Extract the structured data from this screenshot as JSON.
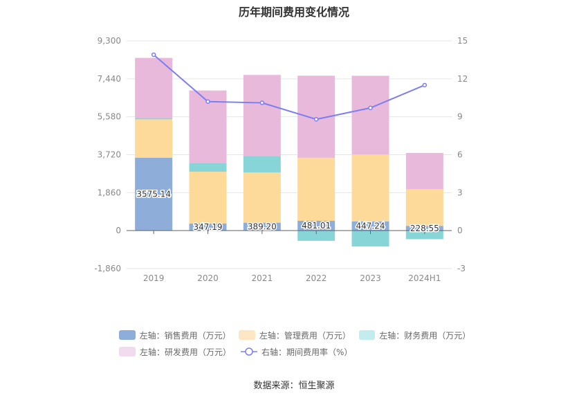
{
  "chart_data": {
    "type": "bar",
    "title": "历年期间费用变化情况",
    "categories": [
      "2019",
      "2020",
      "2021",
      "2022",
      "2023",
      "2024H1"
    ],
    "left_axis": {
      "min": -1860,
      "max": 9300,
      "ticks": [
        -1860,
        0,
        1860,
        3720,
        5580,
        7440,
        9300
      ],
      "tick_labels": [
        "-1,860",
        "0",
        "1,860",
        "3,720",
        "5,580",
        "7,440",
        "9,300"
      ]
    },
    "right_axis": {
      "min": -3,
      "max": 15,
      "ticks": [
        -3,
        0,
        3,
        6,
        9,
        12,
        15
      ],
      "tick_labels": [
        "-3",
        "0",
        "3",
        "6",
        "9",
        "12",
        "15"
      ]
    },
    "series": [
      {
        "name": "左轴：销售费用（万元）",
        "axis": "left",
        "kind": "bar",
        "color": "#8eadd9",
        "values": [
          3575.14,
          347.19,
          389.2,
          481.01,
          447.24,
          228.55
        ],
        "labels": [
          "3575.14",
          "347.19",
          "389.20",
          "481.01",
          "447.24",
          "228.55"
        ]
      },
      {
        "name": "左轴：管理费用（万元）",
        "axis": "left",
        "kind": "bar",
        "color": "#fdd99a",
        "values": [
          1880,
          2540,
          2460,
          3080,
          3280,
          1800
        ]
      },
      {
        "name": "左轴：财务费用（万元）",
        "axis": "left",
        "kind": "bar",
        "color": "#88d5d8",
        "values": [
          60,
          430,
          810,
          -500,
          -780,
          -420
        ]
      },
      {
        "name": "左轴：研发费用（万元）",
        "axis": "left",
        "kind": "bar",
        "color": "#e8b9da",
        "values": [
          2950,
          3550,
          3970,
          4030,
          3860,
          1780
        ]
      },
      {
        "name": "右轴：期间费用率（%）",
        "axis": "right",
        "kind": "line",
        "color": "#7a7ef2",
        "values": [
          13.9,
          10.2,
          10.1,
          8.8,
          9.7,
          11.5
        ]
      }
    ],
    "grid": true,
    "legend_position": "bottom",
    "source": "数据来源：恒生聚源"
  }
}
